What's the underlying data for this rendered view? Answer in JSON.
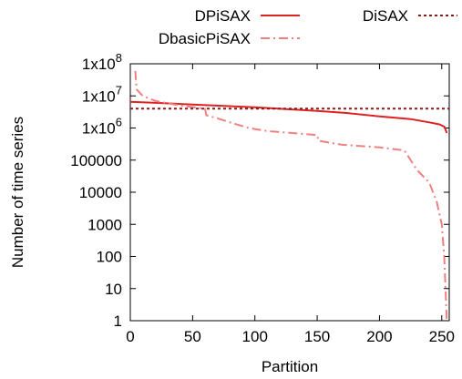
{
  "chart_data": {
    "type": "line",
    "xlabel": "Partition",
    "ylabel": "Number of time series",
    "xlim": [
      0,
      256
    ],
    "ylim": [
      1,
      100000000
    ],
    "yscale": "log",
    "grid": false,
    "legend_position": "top",
    "x_ticks": [
      0,
      50,
      100,
      150,
      200,
      250
    ],
    "x_tick_labels": [
      "0",
      "50",
      "100",
      "150",
      "200",
      "250"
    ],
    "y_ticks": [
      1,
      10,
      100,
      1000,
      10000,
      100000,
      1000000,
      10000000,
      100000000
    ],
    "y_tick_labels": [
      "1",
      "10",
      "100",
      "1000",
      "10000",
      "100000",
      "1x10^6",
      "1x10^7",
      "1x10^8"
    ],
    "y_tick_mantissa": "1x10",
    "series": [
      {
        "name": "DPiSAX",
        "color": "#dd2222",
        "style": "solid",
        "points": [
          [
            0,
            6500000
          ],
          [
            25,
            6000000
          ],
          [
            50,
            5400000
          ],
          [
            75,
            4900000
          ],
          [
            100,
            4400000
          ],
          [
            125,
            3900000
          ],
          [
            150,
            3400000
          ],
          [
            175,
            2900000
          ],
          [
            200,
            2300000
          ],
          [
            225,
            1900000
          ],
          [
            240,
            1500000
          ],
          [
            248,
            1300000
          ],
          [
            252,
            1100000
          ],
          [
            253,
            900000
          ],
          [
            254,
            700000
          ]
        ]
      },
      {
        "name": "DbasicPiSAX",
        "color": "#f08080",
        "style": "dash-dot",
        "points": [
          [
            4,
            60000000
          ],
          [
            5,
            16000000
          ],
          [
            10,
            10000000
          ],
          [
            20,
            7000000
          ],
          [
            40,
            5000000
          ],
          [
            60,
            4000000
          ],
          [
            61,
            2500000
          ],
          [
            70,
            2000000
          ],
          [
            80,
            1500000
          ],
          [
            95,
            1000000
          ],
          [
            110,
            800000
          ],
          [
            130,
            700000
          ],
          [
            150,
            600000
          ],
          [
            151,
            400000
          ],
          [
            170,
            300000
          ],
          [
            200,
            250000
          ],
          [
            220,
            200000
          ],
          [
            230,
            50000
          ],
          [
            240,
            20000
          ],
          [
            246,
            5000
          ],
          [
            250,
            1000
          ],
          [
            252,
            100
          ],
          [
            253,
            10
          ],
          [
            254,
            1
          ]
        ]
      },
      {
        "name": "DiSAX",
        "color": "#8b1a1a",
        "style": "dotted",
        "points": [
          [
            0,
            4000000
          ],
          [
            256,
            4000000
          ]
        ]
      }
    ]
  }
}
